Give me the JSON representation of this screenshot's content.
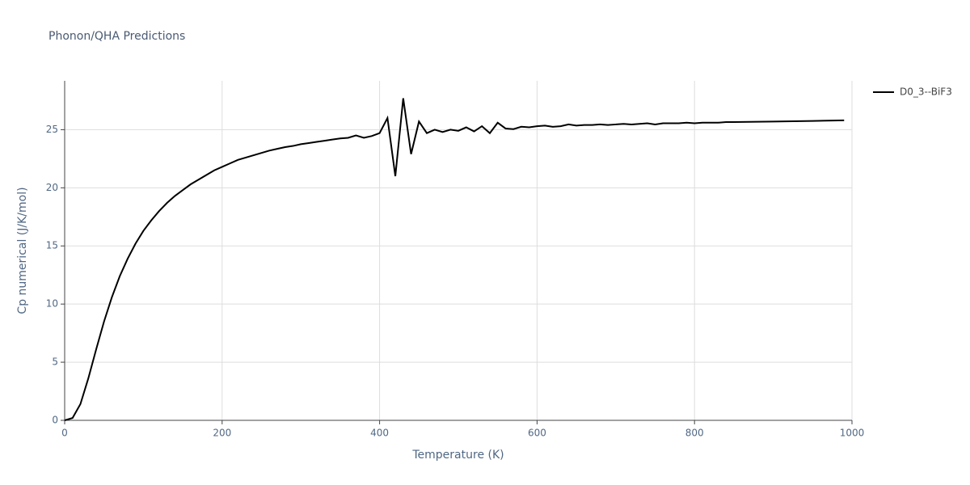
{
  "chart_data": {
    "type": "line",
    "title": "Phonon/QHA Predictions",
    "x_label": "Temperature (K)",
    "y_label": "Cp numerical (J/K/mol)",
    "x": [
      0,
      10,
      20,
      30,
      40,
      50,
      60,
      70,
      80,
      90,
      100,
      110,
      120,
      130,
      140,
      150,
      160,
      170,
      180,
      190,
      200,
      210,
      220,
      230,
      240,
      250,
      260,
      270,
      280,
      290,
      300,
      310,
      320,
      330,
      340,
      350,
      360,
      370,
      380,
      390,
      400,
      410,
      420,
      430,
      440,
      450,
      460,
      470,
      480,
      490,
      500,
      510,
      520,
      530,
      540,
      550,
      560,
      570,
      580,
      590,
      600,
      610,
      620,
      630,
      640,
      650,
      660,
      670,
      680,
      690,
      700,
      710,
      720,
      730,
      740,
      750,
      760,
      770,
      780,
      790,
      800,
      810,
      820,
      830,
      840,
      850,
      900,
      950,
      990
    ],
    "series": [
      {
        "name": "D0_3--BiF3",
        "color": "#000000",
        "values": [
          0,
          0.2,
          1.4,
          3.6,
          6.1,
          8.5,
          10.6,
          12.4,
          13.9,
          15.2,
          16.3,
          17.2,
          18.0,
          18.7,
          19.3,
          19.8,
          20.3,
          20.7,
          21.1,
          21.5,
          21.8,
          22.1,
          22.4,
          22.6,
          22.8,
          23.0,
          23.2,
          23.35,
          23.5,
          23.6,
          23.75,
          23.85,
          23.95,
          24.05,
          24.15,
          24.25,
          24.3,
          24.5,
          24.3,
          24.45,
          24.7,
          26.0,
          21.0,
          27.7,
          22.9,
          25.7,
          24.7,
          25.0,
          24.8,
          25.0,
          24.9,
          25.2,
          24.85,
          25.3,
          24.7,
          25.6,
          25.1,
          25.05,
          25.25,
          25.2,
          25.3,
          25.35,
          25.25,
          25.3,
          25.45,
          25.35,
          25.4,
          25.4,
          25.45,
          25.4,
          25.45,
          25.5,
          25.45,
          25.5,
          25.55,
          25.45,
          25.55,
          25.55,
          25.55,
          25.6,
          25.55,
          25.6,
          25.6,
          25.6,
          25.65,
          25.65,
          25.7,
          25.75,
          25.8
        ]
      }
    ],
    "xlim": [
      0,
      1000
    ],
    "xticks": [
      0,
      200,
      400,
      600,
      800,
      1000
    ],
    "ylim": [
      0,
      29.2
    ],
    "yticks": [
      0,
      5,
      10,
      15,
      20,
      25
    ],
    "grid": true,
    "legend": "top-right"
  }
}
